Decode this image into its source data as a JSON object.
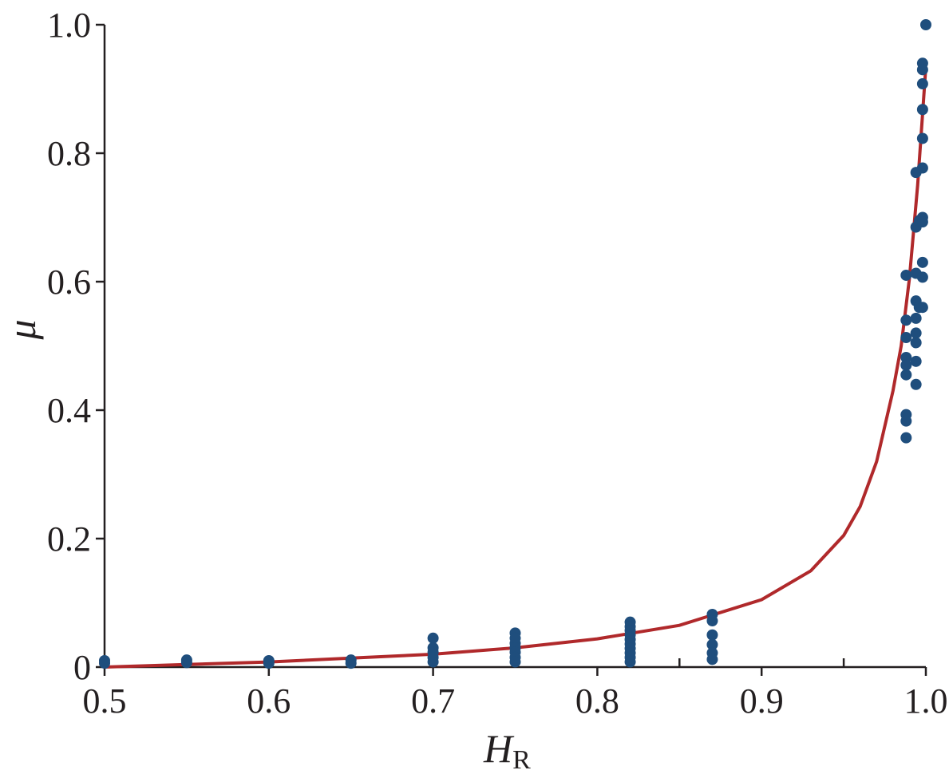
{
  "chart_data": {
    "type": "scatter",
    "xlabel": "H",
    "xlabel_sub": "R",
    "ylabel": "μ",
    "xlim": [
      0.5,
      1.0
    ],
    "ylim": [
      0,
      1.0
    ],
    "x_ticks": [
      {
        "value": 0.5,
        "label": "0.5"
      },
      {
        "value": 0.6,
        "label": "0.6"
      },
      {
        "value": 0.7,
        "label": "0.7"
      },
      {
        "value": 0.8,
        "label": "0.8"
      },
      {
        "value": 0.9,
        "label": "0.9"
      },
      {
        "value": 1.0,
        "label": "1.0"
      }
    ],
    "x_minor_ticks": [
      0.55,
      0.65,
      0.75,
      0.85,
      0.95
    ],
    "y_ticks": [
      {
        "value": 0,
        "label": "0"
      },
      {
        "value": 0.2,
        "label": "0.2"
      },
      {
        "value": 0.4,
        "label": "0.4"
      },
      {
        "value": 0.6,
        "label": "0.6"
      },
      {
        "value": 0.8,
        "label": "0.8"
      },
      {
        "value": 1.0,
        "label": "1.0"
      }
    ],
    "grid": false,
    "colors": {
      "points": "#1f4e7d",
      "fit_line": "#b0292b",
      "axis": "#231f20"
    },
    "series": [
      {
        "kind": "points",
        "points": [
          [
            0.5,
            0.01
          ],
          [
            0.5,
            0.006
          ],
          [
            0.55,
            0.011
          ],
          [
            0.55,
            0.007
          ],
          [
            0.6,
            0.01
          ],
          [
            0.6,
            0.006
          ],
          [
            0.65,
            0.011
          ],
          [
            0.65,
            0.006
          ],
          [
            0.7,
            0.045
          ],
          [
            0.7,
            0.03
          ],
          [
            0.7,
            0.023
          ],
          [
            0.7,
            0.015
          ],
          [
            0.7,
            0.008
          ],
          [
            0.75,
            0.053
          ],
          [
            0.75,
            0.045
          ],
          [
            0.75,
            0.037
          ],
          [
            0.75,
            0.03
          ],
          [
            0.75,
            0.023
          ],
          [
            0.75,
            0.015
          ],
          [
            0.75,
            0.008
          ],
          [
            0.82,
            0.07
          ],
          [
            0.82,
            0.063
          ],
          [
            0.82,
            0.057
          ],
          [
            0.82,
            0.05
          ],
          [
            0.82,
            0.043
          ],
          [
            0.82,
            0.036
          ],
          [
            0.82,
            0.029
          ],
          [
            0.82,
            0.022
          ],
          [
            0.82,
            0.015
          ],
          [
            0.82,
            0.008
          ],
          [
            0.87,
            0.082
          ],
          [
            0.87,
            0.072
          ],
          [
            0.87,
            0.05
          ],
          [
            0.87,
            0.035
          ],
          [
            0.87,
            0.022
          ],
          [
            0.87,
            0.012
          ],
          [
            0.988,
            0.61
          ],
          [
            0.988,
            0.54
          ],
          [
            0.988,
            0.513
          ],
          [
            0.988,
            0.482
          ],
          [
            0.988,
            0.47
          ],
          [
            0.988,
            0.455
          ],
          [
            0.988,
            0.393
          ],
          [
            0.988,
            0.383
          ],
          [
            0.988,
            0.357
          ],
          [
            0.994,
            0.77
          ],
          [
            0.994,
            0.685
          ],
          [
            0.994,
            0.613
          ],
          [
            0.994,
            0.57
          ],
          [
            0.994,
            0.543
          ],
          [
            0.994,
            0.52
          ],
          [
            0.994,
            0.505
          ],
          [
            0.994,
            0.476
          ],
          [
            0.994,
            0.44
          ],
          [
            0.996,
            0.695
          ],
          [
            0.996,
            0.56
          ],
          [
            0.998,
            0.94
          ],
          [
            0.998,
            0.93
          ],
          [
            0.998,
            0.908
          ],
          [
            0.998,
            0.868
          ],
          [
            0.998,
            0.823
          ],
          [
            0.998,
            0.777
          ],
          [
            0.998,
            0.7
          ],
          [
            0.998,
            0.693
          ],
          [
            0.998,
            0.63
          ],
          [
            0.998,
            0.607
          ],
          [
            0.998,
            0.56
          ],
          [
            1.0,
            1.0
          ]
        ]
      },
      {
        "kind": "fit_line",
        "points": [
          [
            0.5,
            0.0
          ],
          [
            0.55,
            0.004
          ],
          [
            0.6,
            0.008
          ],
          [
            0.65,
            0.014
          ],
          [
            0.7,
            0.02
          ],
          [
            0.75,
            0.03
          ],
          [
            0.8,
            0.044
          ],
          [
            0.85,
            0.065
          ],
          [
            0.9,
            0.105
          ],
          [
            0.93,
            0.15
          ],
          [
            0.95,
            0.205
          ],
          [
            0.96,
            0.25
          ],
          [
            0.97,
            0.32
          ],
          [
            0.98,
            0.43
          ],
          [
            0.985,
            0.5
          ],
          [
            0.99,
            0.605
          ],
          [
            0.995,
            0.75
          ],
          [
            1.0,
            0.935
          ]
        ]
      }
    ]
  }
}
